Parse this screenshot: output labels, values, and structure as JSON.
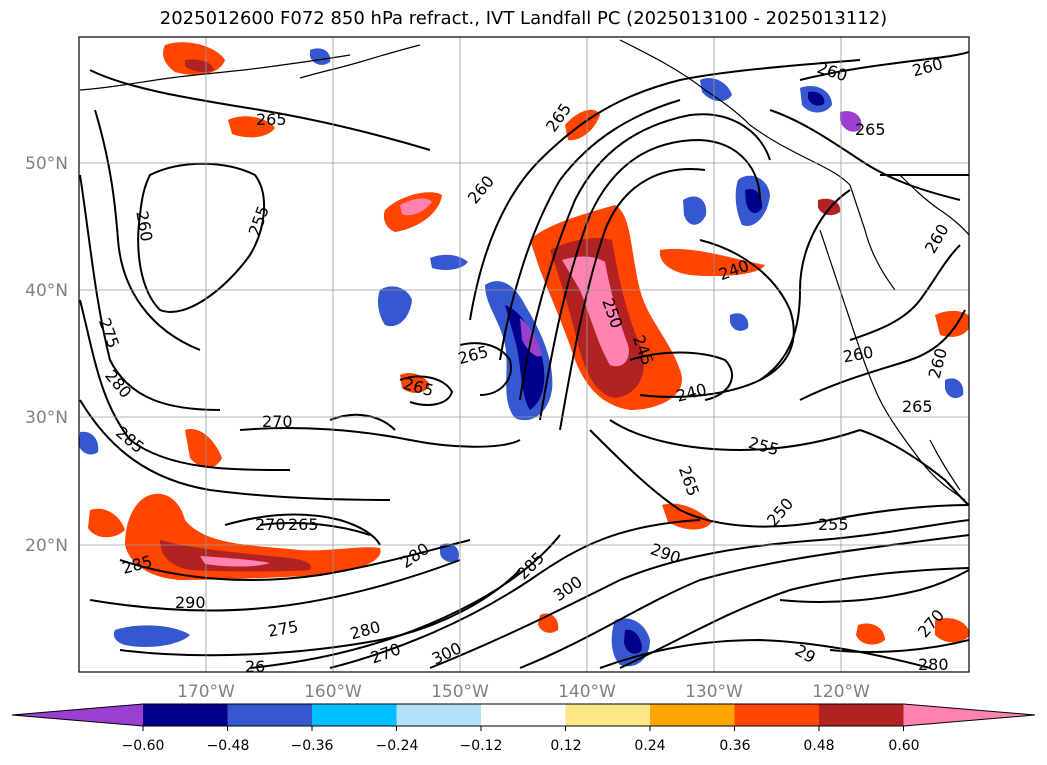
{
  "title": "2025012600 F072 850 hPa refract., IVT Landfall PC (2025013100 - 2025013112)",
  "latitude_labels": [
    "50°N",
    "40°N",
    "30°N",
    "20°N"
  ],
  "longitude_labels": [
    "170°W",
    "160°W",
    "150°W",
    "140°W",
    "130°W",
    "120°W"
  ],
  "colorbar": {
    "tick_labels": [
      "−0.60",
      "−0.48",
      "−0.36",
      "−0.24",
      "−0.12",
      "0.12",
      "0.24",
      "0.36",
      "0.48",
      "0.60"
    ],
    "colors": [
      "#9a3fd0",
      "#00008b",
      "#3558d0",
      "#00bfff",
      "#b3e0fa",
      "#ffffff",
      "#fde68a",
      "#ffa500",
      "#ff4500",
      "#b22222",
      "#ff82b0"
    ]
  },
  "contour_labels": [
    "260",
    "260",
    "265",
    "265",
    "255",
    "260",
    "265",
    "260",
    "250",
    "245",
    "240",
    "240",
    "255",
    "265",
    "250",
    "255",
    "275",
    "280",
    "285",
    "270",
    "265",
    "265",
    "270",
    "265",
    "285",
    "290",
    "280",
    "285",
    "300",
    "290",
    "275",
    "280",
    "270",
    "300",
    "260",
    "260",
    "265",
    "260",
    "270",
    "280",
    "29",
    "26"
  ]
}
